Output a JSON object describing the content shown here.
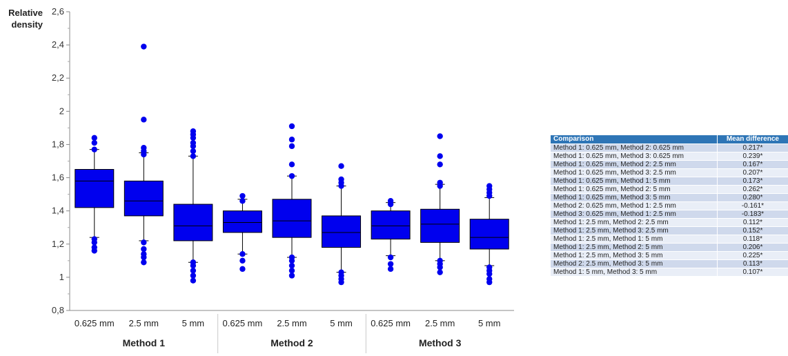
{
  "chart_data": {
    "type": "box",
    "ylabel": "Relative density",
    "ylim": [
      0.8,
      2.6
    ],
    "y_ticks": [
      "2,6",
      "2,4",
      "2,2",
      "2",
      "1,8",
      "1,6",
      "1,4",
      "1,2",
      "1",
      "0,8"
    ],
    "y_tick_values": [
      2.6,
      2.4,
      2.2,
      2.0,
      1.8,
      1.6,
      1.4,
      1.2,
      1.0,
      0.8
    ],
    "groups": [
      "Method 1",
      "Method 2",
      "Method 3"
    ],
    "categories": [
      "0.625 mm",
      "2.5 mm",
      "5 mm",
      "0.625 mm",
      "2.5 mm",
      "5 mm",
      "0.625 mm",
      "2.5 mm",
      "5 mm"
    ],
    "color": "#0000ee",
    "boxes": [
      {
        "group": "Method 1",
        "category": "0.625 mm",
        "whisker_low": 1.24,
        "q1": 1.42,
        "median": 1.58,
        "q3": 1.65,
        "whisker_high": 1.77,
        "outliers": [
          1.16,
          1.18,
          1.21,
          1.23,
          1.77,
          1.81,
          1.84
        ]
      },
      {
        "group": "Method 1",
        "category": "2.5 mm",
        "whisker_low": 1.22,
        "q1": 1.37,
        "median": 1.46,
        "q3": 1.58,
        "whisker_high": 1.75,
        "outliers": [
          1.09,
          1.12,
          1.14,
          1.17,
          1.21,
          1.74,
          1.76,
          1.78,
          1.95,
          2.39
        ]
      },
      {
        "group": "Method 1",
        "category": "5 mm",
        "whisker_low": 1.09,
        "q1": 1.22,
        "median": 1.31,
        "q3": 1.44,
        "whisker_high": 1.73,
        "outliers": [
          0.98,
          1.01,
          1.04,
          1.07,
          1.09,
          1.73,
          1.76,
          1.79,
          1.81,
          1.84,
          1.86,
          1.88
        ]
      },
      {
        "group": "Method 2",
        "category": "0.625 mm",
        "whisker_low": 1.14,
        "q1": 1.27,
        "median": 1.33,
        "q3": 1.4,
        "whisker_high": 1.47,
        "outliers": [
          1.05,
          1.1,
          1.14,
          1.46,
          1.49
        ]
      },
      {
        "group": "Method 2",
        "category": "2.5 mm",
        "whisker_low": 1.12,
        "q1": 1.24,
        "median": 1.34,
        "q3": 1.47,
        "whisker_high": 1.61,
        "outliers": [
          1.01,
          1.04,
          1.07,
          1.1,
          1.12,
          1.61,
          1.68,
          1.79,
          1.83,
          1.91
        ]
      },
      {
        "group": "Method 2",
        "category": "5 mm",
        "whisker_low": 1.03,
        "q1": 1.18,
        "median": 1.27,
        "q3": 1.37,
        "whisker_high": 1.55,
        "outliers": [
          0.97,
          0.99,
          1.01,
          1.03,
          1.55,
          1.57,
          1.59,
          1.67
        ]
      },
      {
        "group": "Method 3",
        "category": "0.625 mm",
        "whisker_low": 1.13,
        "q1": 1.23,
        "median": 1.31,
        "q3": 1.4,
        "whisker_high": 1.45,
        "outliers": [
          1.05,
          1.08,
          1.12,
          1.44,
          1.46
        ]
      },
      {
        "group": "Method 3",
        "category": "2.5 mm",
        "whisker_low": 1.1,
        "q1": 1.21,
        "median": 1.32,
        "q3": 1.41,
        "whisker_high": 1.56,
        "outliers": [
          1.03,
          1.06,
          1.08,
          1.1,
          1.55,
          1.57,
          1.68,
          1.73,
          1.85
        ]
      },
      {
        "group": "Method 3",
        "category": "5 mm",
        "whisker_low": 1.07,
        "q1": 1.17,
        "median": 1.24,
        "q3": 1.35,
        "whisker_high": 1.48,
        "outliers": [
          0.97,
          0.99,
          1.02,
          1.04,
          1.06,
          1.49,
          1.51,
          1.53,
          1.55
        ]
      }
    ]
  },
  "comparison_table": {
    "headers": [
      "Comparison",
      "Mean difference"
    ],
    "rows": [
      [
        "Method 1: 0.625 mm, Method 2: 0.625 mm",
        "0.217*"
      ],
      [
        "Method 1: 0.625 mm, Method 3: 0.625 mm",
        "0.239*"
      ],
      [
        "Method 1: 0.625 mm, Method 2: 2.5 mm",
        "0.167*"
      ],
      [
        "Method 1: 0.625 mm, Method 3: 2.5 mm",
        "0.207*"
      ],
      [
        "Method 1: 0.625 mm, Method 1: 5 mm",
        "0.173*"
      ],
      [
        "Method 1: 0.625 mm, Method 2: 5 mm",
        "0.262*"
      ],
      [
        "Method 1: 0.625 mm, Method 3: 5 mm",
        "0.280*"
      ],
      [
        "Method 2: 0.625 mm, Method 1: 2.5 mm",
        "-0.161*"
      ],
      [
        "Method 3: 0.625 mm, Method 1: 2.5 mm",
        "-0.183*"
      ],
      [
        "Method 1: 2.5 mm, Method 2: 2.5 mm",
        "0.112*"
      ],
      [
        "Method 1: 2.5 mm, Method 3: 2.5 mm",
        "0.152*"
      ],
      [
        "Method 1: 2.5 mm, Method 1: 5 mm",
        "0.118*"
      ],
      [
        "Method 1: 2.5 mm, Method 2: 5 mm",
        "0.206*"
      ],
      [
        "Method 1: 2.5 mm, Method 3: 5 mm",
        "0.225*"
      ],
      [
        "Method 2: 2.5 mm, Method 3: 5 mm",
        "0.113*"
      ],
      [
        "Method 1: 5 mm, Method 3: 5 mm",
        "0.107*"
      ]
    ]
  }
}
